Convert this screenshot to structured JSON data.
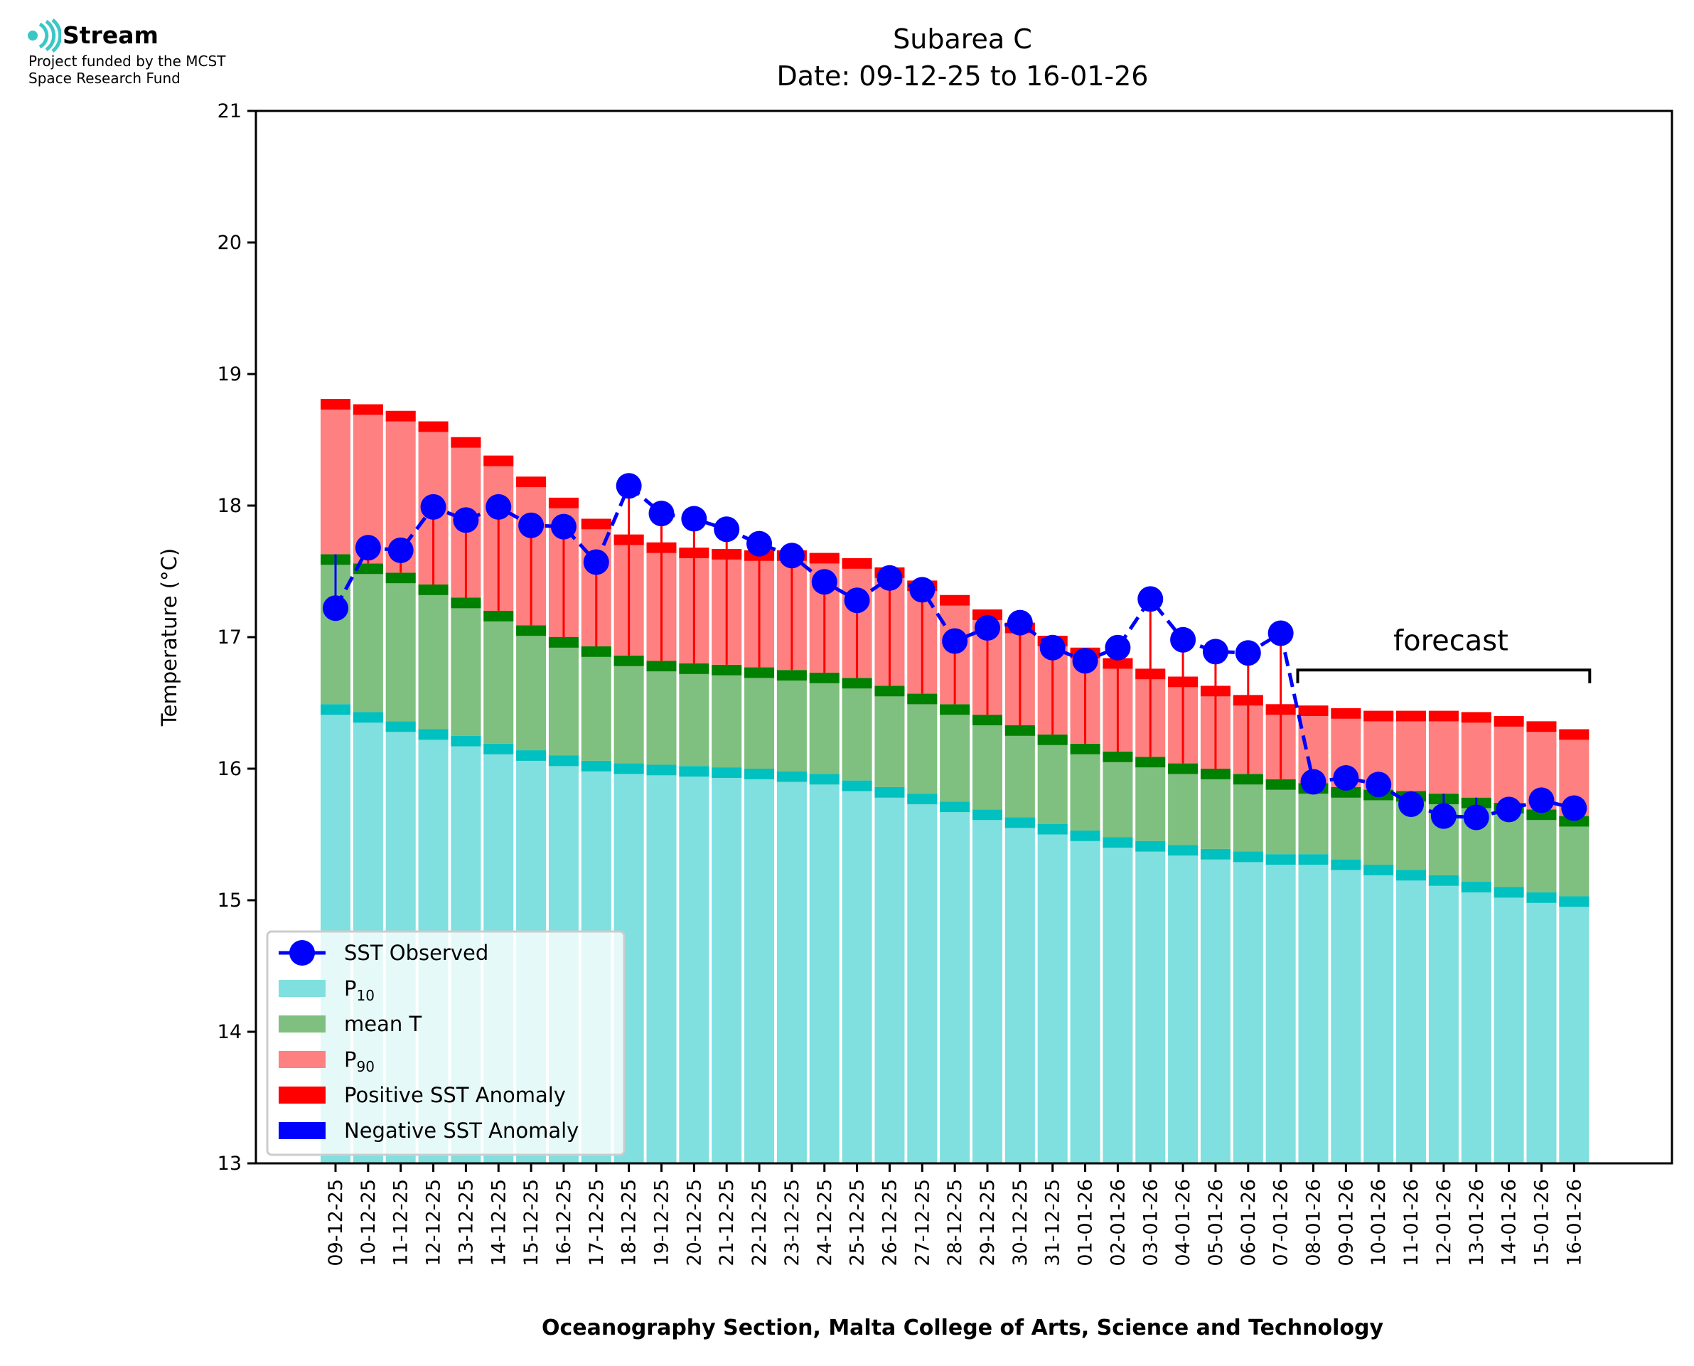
{
  "logo": {
    "name": "Stream",
    "line1": "Project funded by the MCST",
    "line2": "Space Research Fund"
  },
  "annotation": {
    "forecast_label": "forecast"
  },
  "colors": {
    "p10": "#80dfdf",
    "p10_band": "#00c0c0",
    "mean": "#7fbf7f",
    "mean_band": "#008000",
    "p90": "#ff8080",
    "p90_band": "#ff0000",
    "observed": "#0000ff",
    "positive_anomaly": "#ff0000",
    "negative_anomaly": "#0000ff"
  },
  "chart_data": {
    "type": "bar",
    "title": "Subarea C",
    "subtitle": "Date: 09-12-25 to 16-01-26",
    "xlabel": "Oceanography Section, Malta College of Arts, Science and Technology",
    "ylabel": "Temperature (°C)",
    "ylim": [
      13,
      21
    ],
    "yticks": [
      13,
      14,
      15,
      16,
      17,
      18,
      19,
      20,
      21
    ],
    "grid": false,
    "legend_position": "bottom-left",
    "categories": [
      "09-12-25",
      "10-12-25",
      "11-12-25",
      "12-12-25",
      "13-12-25",
      "14-12-25",
      "15-12-25",
      "16-12-25",
      "17-12-25",
      "18-12-25",
      "19-12-25",
      "20-12-25",
      "21-12-25",
      "22-12-25",
      "23-12-25",
      "24-12-25",
      "25-12-25",
      "26-12-25",
      "27-12-25",
      "28-12-25",
      "29-12-25",
      "30-12-25",
      "31-12-25",
      "01-01-26",
      "02-01-26",
      "03-01-26",
      "04-01-26",
      "05-01-26",
      "06-01-26",
      "07-01-26",
      "08-01-26",
      "09-01-26",
      "10-01-26",
      "11-01-26",
      "12-01-26",
      "13-01-26",
      "14-01-26",
      "15-01-26",
      "16-01-26"
    ],
    "series": [
      {
        "name": "P10",
        "legend_label": "P",
        "legend_sub": "10",
        "values": [
          16.49,
          16.43,
          16.36,
          16.3,
          16.25,
          16.19,
          16.14,
          16.1,
          16.06,
          16.04,
          16.03,
          16.02,
          16.01,
          16.0,
          15.98,
          15.96,
          15.91,
          15.86,
          15.81,
          15.75,
          15.69,
          15.63,
          15.58,
          15.53,
          15.48,
          15.45,
          15.42,
          15.39,
          15.37,
          15.35,
          15.35,
          15.31,
          15.27,
          15.23,
          15.19,
          15.14,
          15.1,
          15.06,
          15.03
        ]
      },
      {
        "name": "mean T",
        "legend_label": "mean T",
        "values": [
          17.63,
          17.56,
          17.49,
          17.4,
          17.3,
          17.2,
          17.09,
          17.0,
          16.93,
          16.86,
          16.82,
          16.8,
          16.79,
          16.77,
          16.75,
          16.73,
          16.69,
          16.63,
          16.57,
          16.49,
          16.41,
          16.33,
          16.26,
          16.19,
          16.13,
          16.09,
          16.04,
          16.0,
          15.96,
          15.92,
          15.89,
          15.86,
          15.84,
          15.83,
          15.81,
          15.78,
          15.74,
          15.69,
          15.64
        ]
      },
      {
        "name": "P90",
        "legend_label": "P",
        "legend_sub": "90",
        "values": [
          18.81,
          18.77,
          18.72,
          18.64,
          18.52,
          18.38,
          18.22,
          18.06,
          17.9,
          17.78,
          17.72,
          17.68,
          17.67,
          17.66,
          17.66,
          17.64,
          17.6,
          17.53,
          17.43,
          17.32,
          17.21,
          17.11,
          17.01,
          16.92,
          16.84,
          16.76,
          16.7,
          16.63,
          16.56,
          16.49,
          16.48,
          16.46,
          16.44,
          16.44,
          16.44,
          16.43,
          16.4,
          16.36,
          16.3
        ]
      },
      {
        "name": "SST Observed",
        "legend_label": "SST Observed",
        "values": [
          17.22,
          17.68,
          17.66,
          17.99,
          17.89,
          17.99,
          17.85,
          17.84,
          17.57,
          18.15,
          17.94,
          17.9,
          17.82,
          17.71,
          17.62,
          17.42,
          17.28,
          17.45,
          17.36,
          16.97,
          17.07,
          17.11,
          16.92,
          16.82,
          16.92,
          17.29,
          16.98,
          16.89,
          16.88,
          17.03,
          15.9,
          15.93,
          15.88,
          15.73,
          15.64,
          15.63,
          15.69,
          15.76,
          15.7
        ]
      }
    ],
    "legend_extra": [
      "Positive SST Anomaly",
      "Negative SST Anomaly"
    ],
    "forecast_start": "08-01-26",
    "forecast_end": "16-01-26"
  }
}
